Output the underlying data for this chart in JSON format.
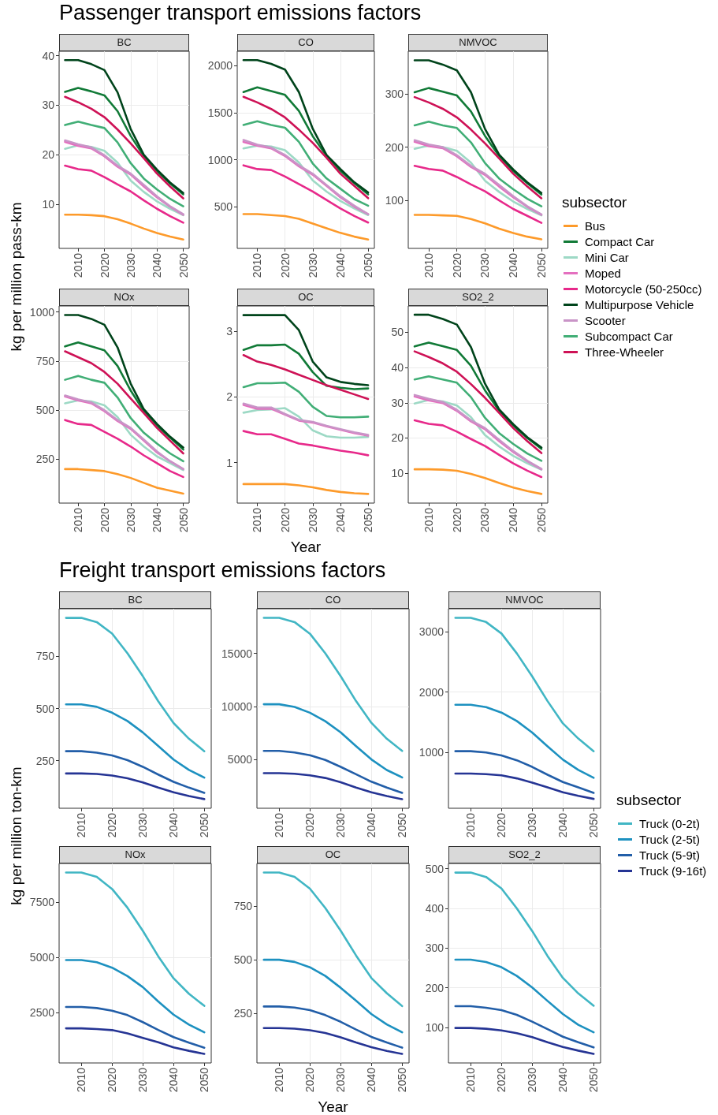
{
  "chart_data": [
    {
      "type": "line",
      "title": "BC",
      "annotations": [
        "Passenger transport emissions factors"
      ],
      "ylabel": "kg per million pass-km",
      "x": [
        2005,
        2010,
        2015,
        2020,
        2025,
        2030,
        2035,
        2040,
        2045,
        2050
      ],
      "xlim": [
        2002.75,
        2052.25
      ],
      "xticks": [
        2010,
        2020,
        2030,
        2040,
        2050
      ],
      "ylim": [
        1.1,
        40.9
      ],
      "yticks": [
        10,
        20,
        30,
        40
      ],
      "grid": true,
      "series": [
        {
          "color": "#fd9a2a",
          "values": [
            7.9,
            7.9,
            7.8,
            7.6,
            7.0,
            6.1,
            5.1,
            4.2,
            3.5,
            2.9
          ]
        },
        {
          "color": "#117a37",
          "values": [
            32.7,
            33.5,
            32.8,
            32.0,
            28.8,
            23.8,
            19.7,
            16.7,
            14.2,
            12.0
          ]
        },
        {
          "color": "#9dd9c5",
          "values": [
            21.2,
            21.9,
            21.6,
            20.8,
            18.4,
            14.8,
            12.5,
            10.6,
            9.1,
            7.8
          ]
        },
        {
          "color": "#e46fbf",
          "values": [
            22.6,
            21.8,
            21.3,
            19.7,
            17.6,
            16.0,
            13.6,
            11.4,
            9.5,
            7.9
          ]
        },
        {
          "color": "#e7298a",
          "values": [
            17.8,
            17.1,
            16.8,
            15.5,
            14.0,
            12.6,
            10.8,
            9.1,
            7.6,
            6.3
          ]
        },
        {
          "color": "#00441b",
          "values": [
            39.1,
            39.1,
            38.3,
            37.1,
            32.6,
            25.2,
            20.0,
            17.0,
            14.4,
            12.3
          ]
        },
        {
          "color": "#c994c7",
          "values": [
            22.9,
            22.1,
            21.5,
            19.9,
            17.8,
            16.2,
            13.9,
            11.6,
            9.6,
            8.0
          ]
        },
        {
          "color": "#41ae76",
          "values": [
            26.0,
            26.7,
            26.0,
            25.4,
            22.5,
            18.3,
            15.2,
            13.0,
            11.1,
            9.6
          ]
        },
        {
          "color": "#ce1256",
          "values": [
            31.7,
            30.6,
            29.3,
            27.6,
            25.1,
            22.3,
            19.3,
            16.2,
            13.6,
            11.2
          ]
        }
      ]
    },
    {
      "type": "line",
      "title": "CO",
      "x": [
        2005,
        2010,
        2015,
        2020,
        2025,
        2030,
        2035,
        2040,
        2045,
        2050
      ],
      "xlim": [
        2002.75,
        2052.25
      ],
      "xticks": [
        2010,
        2020,
        2030,
        2040,
        2050
      ],
      "ylim": [
        55,
        2155
      ],
      "yticks": [
        500,
        1000,
        1500,
        2000
      ],
      "grid": true,
      "series": [
        {
          "color": "#fd9a2a",
          "values": [
            420,
            420,
            410,
            400,
            370,
            320,
            270,
            220,
            180,
            150
          ]
        },
        {
          "color": "#117a37",
          "values": [
            1720,
            1770,
            1730,
            1690,
            1520,
            1250,
            1040,
            880,
            750,
            630
          ]
        },
        {
          "color": "#9dd9c5",
          "values": [
            1120,
            1150,
            1140,
            1100,
            970,
            780,
            660,
            560,
            480,
            410
          ]
        },
        {
          "color": "#e46fbf",
          "values": [
            1190,
            1150,
            1120,
            1040,
            930,
            840,
            720,
            600,
            500,
            420
          ]
        },
        {
          "color": "#e7298a",
          "values": [
            940,
            900,
            890,
            820,
            740,
            660,
            570,
            480,
            400,
            330
          ]
        },
        {
          "color": "#00441b",
          "values": [
            2060,
            2060,
            2020,
            1960,
            1720,
            1330,
            1050,
            900,
            760,
            650
          ]
        },
        {
          "color": "#c994c7",
          "values": [
            1210,
            1160,
            1130,
            1050,
            940,
            850,
            730,
            610,
            510,
            420
          ]
        },
        {
          "color": "#41ae76",
          "values": [
            1370,
            1410,
            1370,
            1340,
            1190,
            960,
            800,
            690,
            580,
            510
          ]
        },
        {
          "color": "#ce1256",
          "values": [
            1670,
            1610,
            1540,
            1450,
            1320,
            1180,
            1020,
            850,
            720,
            590
          ]
        }
      ]
    },
    {
      "type": "line",
      "title": "NMVOC",
      "legend": "right",
      "legend_title": "subsector",
      "x": [
        2005,
        2010,
        2015,
        2020,
        2025,
        2030,
        2035,
        2040,
        2045,
        2050
      ],
      "xlim": [
        2002.75,
        2052.25
      ],
      "xticks": [
        2010,
        2020,
        2030,
        2040,
        2050
      ],
      "ylim": [
        10,
        380
      ],
      "yticks": [
        100,
        200,
        300
      ],
      "grid": true,
      "series": [
        {
          "name": "Bus",
          "color": "#fd9a2a",
          "values": [
            73,
            73,
            72,
            71,
            65,
            57,
            47,
            39,
            32,
            27
          ]
        },
        {
          "name": "Compact Car",
          "color": "#117a37",
          "values": [
            303,
            311,
            304,
            297,
            267,
            221,
            183,
            155,
            132,
            111
          ]
        },
        {
          "name": "Mini Car",
          "color": "#9dd9c5",
          "values": [
            197,
            203,
            200,
            193,
            171,
            137,
            116,
            98,
            84,
            72
          ]
        },
        {
          "name": "Moped",
          "color": "#e46fbf",
          "values": [
            210,
            202,
            198,
            183,
            163,
            148,
            126,
            106,
            88,
            73
          ]
        },
        {
          "name": "Motorcycle (50-250cc)",
          "color": "#e7298a",
          "values": [
            165,
            159,
            156,
            144,
            130,
            117,
            100,
            84,
            71,
            58
          ]
        },
        {
          "name": "Multipurpose Vehicle",
          "color": "#00441b",
          "values": [
            363,
            363,
            355,
            344,
            303,
            234,
            186,
            158,
            134,
            114
          ]
        },
        {
          "name": "Scooter",
          "color": "#c994c7",
          "values": [
            213,
            205,
            200,
            185,
            165,
            150,
            129,
            108,
            89,
            74
          ]
        },
        {
          "name": "Subcompact Car",
          "color": "#41ae76",
          "values": [
            241,
            248,
            241,
            236,
            209,
            170,
            141,
            121,
            103,
            89
          ]
        },
        {
          "name": "Three-Wheeler",
          "color": "#ce1256",
          "values": [
            294,
            284,
            272,
            256,
            233,
            207,
            179,
            150,
            126,
            104
          ]
        }
      ]
    },
    {
      "type": "line",
      "title": "NOx",
      "x": [
        2005,
        2010,
        2015,
        2020,
        2025,
        2030,
        2035,
        2040,
        2045,
        2050
      ],
      "xlim": [
        2002.75,
        2052.25
      ],
      "xticks": [
        2010,
        2020,
        2030,
        2040,
        2050
      ],
      "ylim": [
        27,
        1031
      ],
      "yticks": [
        250,
        500,
        750,
        1000
      ],
      "grid": true,
      "series": [
        {
          "color": "#fd9a2a",
          "values": [
            200,
            200,
            195,
            190,
            175,
            155,
            130,
            105,
            90,
            75
          ]
        },
        {
          "color": "#117a37",
          "values": [
            825,
            845,
            825,
            805,
            725,
            600,
            495,
            420,
            360,
            300
          ]
        },
        {
          "color": "#9dd9c5",
          "values": [
            535,
            550,
            545,
            525,
            465,
            375,
            315,
            265,
            230,
            195
          ]
        },
        {
          "color": "#e46fbf",
          "values": [
            570,
            550,
            535,
            495,
            445,
            405,
            345,
            285,
            240,
            200
          ]
        },
        {
          "color": "#e7298a",
          "values": [
            450,
            430,
            425,
            390,
            355,
            315,
            270,
            230,
            190,
            160
          ]
        },
        {
          "color": "#00441b",
          "values": [
            985,
            985,
            965,
            935,
            820,
            635,
            505,
            430,
            365,
            310
          ]
        },
        {
          "color": "#c994c7",
          "values": [
            575,
            555,
            540,
            500,
            450,
            410,
            350,
            290,
            240,
            200
          ]
        },
        {
          "color": "#41ae76",
          "values": [
            655,
            675,
            655,
            640,
            565,
            460,
            385,
            330,
            280,
            240
          ]
        },
        {
          "color": "#ce1256",
          "values": [
            800,
            770,
            740,
            695,
            635,
            560,
            485,
            410,
            345,
            280
          ]
        }
      ]
    },
    {
      "type": "line",
      "title": "OC",
      "xlabel": "Year",
      "x": [
        2005,
        2010,
        2015,
        2020,
        2025,
        2030,
        2035,
        2040,
        2045,
        2050
      ],
      "xlim": [
        2002.75,
        2052.25
      ],
      "xticks": [
        2010,
        2020,
        2030,
        2040,
        2050
      ],
      "ylim": [
        0.38,
        3.39
      ],
      "yticks": [
        1,
        2,
        3
      ],
      "grid": true,
      "series": [
        {
          "color": "#fd9a2a",
          "values": [
            0.67,
            0.67,
            0.67,
            0.67,
            0.65,
            0.62,
            0.58,
            0.55,
            0.53,
            0.52
          ]
        },
        {
          "color": "#117a37",
          "values": [
            2.72,
            2.79,
            2.79,
            2.8,
            2.66,
            2.38,
            2.17,
            2.14,
            2.12,
            2.13
          ]
        },
        {
          "color": "#9dd9c5",
          "values": [
            1.76,
            1.8,
            1.81,
            1.83,
            1.7,
            1.49,
            1.4,
            1.38,
            1.38,
            1.39
          ]
        },
        {
          "color": "#e46fbf",
          "values": [
            1.88,
            1.82,
            1.82,
            1.73,
            1.64,
            1.61,
            1.55,
            1.5,
            1.45,
            1.41
          ]
        },
        {
          "color": "#e7298a",
          "values": [
            1.48,
            1.43,
            1.43,
            1.36,
            1.29,
            1.26,
            1.22,
            1.18,
            1.15,
            1.11
          ]
        },
        {
          "color": "#00441b",
          "values": [
            3.25,
            3.25,
            3.25,
            3.25,
            3.02,
            2.54,
            2.3,
            2.23,
            2.2,
            2.18
          ]
        },
        {
          "color": "#c994c7",
          "values": [
            1.9,
            1.84,
            1.84,
            1.74,
            1.65,
            1.62,
            1.56,
            1.51,
            1.46,
            1.42
          ]
        },
        {
          "color": "#41ae76",
          "values": [
            2.15,
            2.21,
            2.21,
            2.22,
            2.08,
            1.85,
            1.71,
            1.69,
            1.69,
            1.7
          ]
        },
        {
          "color": "#ce1256",
          "values": [
            2.64,
            2.54,
            2.49,
            2.42,
            2.34,
            2.26,
            2.18,
            2.11,
            2.04,
            1.97
          ]
        }
      ]
    },
    {
      "type": "line",
      "title": "SO2_2",
      "x": [
        2005,
        2010,
        2015,
        2020,
        2025,
        2030,
        2035,
        2040,
        2045,
        2050
      ],
      "xlim": [
        2002.75,
        2052.25
      ],
      "xticks": [
        2010,
        2020,
        2030,
        2040,
        2050
      ],
      "ylim": [
        1.5,
        57.5
      ],
      "yticks": [
        10,
        20,
        30,
        40,
        50
      ],
      "grid": true,
      "series": [
        {
          "color": "#fd9a2a",
          "values": [
            11.1,
            11.1,
            11.0,
            10.7,
            9.8,
            8.6,
            7.2,
            5.9,
            4.9,
            4.1
          ]
        },
        {
          "color": "#117a37",
          "values": [
            46.0,
            47.1,
            46.1,
            45.0,
            40.5,
            33.5,
            27.7,
            23.5,
            20.0,
            16.9
          ]
        },
        {
          "color": "#9dd9c5",
          "values": [
            29.8,
            30.8,
            30.4,
            29.2,
            25.9,
            20.8,
            17.6,
            14.9,
            12.8,
            11.0
          ]
        },
        {
          "color": "#e46fbf",
          "values": [
            31.8,
            30.7,
            29.9,
            27.7,
            24.7,
            22.5,
            19.1,
            16.0,
            13.4,
            11.1
          ]
        },
        {
          "color": "#e7298a",
          "values": [
            25.0,
            24.0,
            23.6,
            21.8,
            19.7,
            17.7,
            15.2,
            12.8,
            10.7,
            8.9
          ]
        },
        {
          "color": "#00441b",
          "values": [
            55.0,
            55.0,
            53.8,
            52.2,
            45.8,
            35.4,
            28.1,
            23.9,
            20.2,
            17.3
          ]
        },
        {
          "color": "#c994c7",
          "values": [
            32.2,
            31.1,
            30.2,
            28.0,
            25.0,
            22.8,
            19.5,
            16.3,
            13.5,
            11.2
          ]
        },
        {
          "color": "#41ae76",
          "values": [
            36.6,
            37.5,
            36.6,
            35.7,
            31.6,
            25.7,
            21.4,
            18.3,
            15.6,
            13.5
          ]
        },
        {
          "color": "#ce1256",
          "values": [
            44.6,
            43.0,
            41.2,
            38.8,
            35.3,
            31.4,
            27.1,
            22.8,
            19.1,
            15.7
          ]
        }
      ]
    },
    {
      "type": "line",
      "title": "BC",
      "annotations": [
        "Freight transport emissions factors"
      ],
      "ylabel": "kg per million ton-km",
      "x": [
        2005,
        2010,
        2015,
        2020,
        2025,
        2030,
        2035,
        2040,
        2045,
        2050
      ],
      "xlim": [
        2002.75,
        2052.25
      ],
      "xticks": [
        2010,
        2020,
        2030,
        2040,
        2050
      ],
      "ylim": [
        21,
        979
      ],
      "yticks": [
        250,
        500,
        750
      ],
      "grid": true,
      "series": [
        {
          "color": "#41b6c4",
          "values": [
            935,
            935,
            915,
            860,
            765,
            655,
            535,
            430,
            355,
            295
          ]
        },
        {
          "color": "#1d91c0",
          "values": [
            520,
            520,
            508,
            480,
            440,
            385,
            320,
            255,
            205,
            168
          ]
        },
        {
          "color": "#225ea8",
          "values": [
            295,
            295,
            288,
            275,
            252,
            220,
            183,
            148,
            120,
            95
          ]
        },
        {
          "color": "#253494",
          "values": [
            188,
            188,
            186,
            178,
            165,
            145,
            120,
            98,
            80,
            65
          ]
        }
      ]
    },
    {
      "type": "line",
      "title": "CO",
      "x": [
        2005,
        2010,
        2015,
        2020,
        2025,
        2030,
        2035,
        2040,
        2045,
        2050
      ],
      "xlim": [
        2002.75,
        2052.25
      ],
      "xticks": [
        2010,
        2020,
        2030,
        2040,
        2050
      ],
      "ylim": [
        395,
        19205
      ],
      "yticks": [
        5000,
        10000,
        15000
      ],
      "grid": true,
      "series": [
        {
          "color": "#41b6c4",
          "values": [
            18350,
            18350,
            17950,
            16850,
            15000,
            12850,
            10500,
            8450,
            6950,
            5800
          ]
        },
        {
          "color": "#1d91c0",
          "values": [
            10200,
            10200,
            9950,
            9400,
            8600,
            7550,
            6250,
            5000,
            4000,
            3300
          ]
        },
        {
          "color": "#225ea8",
          "values": [
            5800,
            5800,
            5650,
            5400,
            4950,
            4300,
            3600,
            2900,
            2350,
            1850
          ]
        },
        {
          "color": "#253494",
          "values": [
            3700,
            3700,
            3650,
            3500,
            3250,
            2850,
            2350,
            1900,
            1550,
            1250
          ]
        }
      ]
    },
    {
      "type": "line",
      "title": "NMVOC",
      "legend": "right",
      "legend_title": "subsector",
      "x": [
        2005,
        2010,
        2015,
        2020,
        2025,
        2030,
        2035,
        2040,
        2045,
        2050
      ],
      "xlim": [
        2002.75,
        2052.25
      ],
      "xticks": [
        2010,
        2020,
        2030,
        2040,
        2050
      ],
      "ylim": [
        75,
        3380
      ],
      "yticks": [
        1000,
        2000,
        3000
      ],
      "grid": true,
      "series": [
        {
          "name": "Truck (0-2t)",
          "color": "#41b6c4",
          "values": [
            3230,
            3230,
            3160,
            2970,
            2640,
            2260,
            1850,
            1480,
            1230,
            1020
          ]
        },
        {
          "name": "Truck (2-5t)",
          "color": "#1d91c0",
          "values": [
            1790,
            1790,
            1750,
            1660,
            1520,
            1330,
            1100,
            880,
            710,
            580
          ]
        },
        {
          "name": "Truck (5-9t)",
          "color": "#225ea8",
          "values": [
            1020,
            1020,
            1000,
            950,
            870,
            760,
            630,
            510,
            420,
            330
          ]
        },
        {
          "name": "Truck (9-16t)",
          "color": "#253494",
          "values": [
            650,
            650,
            640,
            620,
            570,
            500,
            420,
            340,
            280,
            230
          ]
        }
      ]
    },
    {
      "type": "line",
      "title": "NOx",
      "x": [
        2005,
        2010,
        2015,
        2020,
        2025,
        2030,
        2035,
        2040,
        2045,
        2050
      ],
      "xlim": [
        2002.75,
        2052.25
      ],
      "xticks": [
        2010,
        2020,
        2030,
        2040,
        2050
      ],
      "ylim": [
        210,
        9260
      ],
      "yticks": [
        2500,
        5000,
        7500
      ],
      "grid": true,
      "series": [
        {
          "color": "#41b6c4",
          "values": [
            8850,
            8850,
            8650,
            8100,
            7250,
            6200,
            5050,
            4050,
            3350,
            2800
          ]
        },
        {
          "color": "#1d91c0",
          "values": [
            4880,
            4880,
            4780,
            4530,
            4150,
            3650,
            3000,
            2400,
            1950,
            1600
          ]
        },
        {
          "color": "#225ea8",
          "values": [
            2750,
            2750,
            2700,
            2580,
            2380,
            2060,
            1710,
            1380,
            1130,
            900
          ]
        },
        {
          "color": "#253494",
          "values": [
            1780,
            1780,
            1750,
            1700,
            1550,
            1350,
            1150,
            920,
            760,
            620
          ]
        }
      ]
    },
    {
      "type": "line",
      "title": "OC",
      "xlabel": "Year",
      "x": [
        2005,
        2010,
        2015,
        2020,
        2025,
        2030,
        2035,
        2040,
        2045,
        2050
      ],
      "xlim": [
        2002.75,
        2052.25
      ],
      "xticks": [
        2010,
        2020,
        2030,
        2040,
        2050
      ],
      "ylim": [
        21,
        947
      ],
      "yticks": [
        250,
        500,
        750
      ],
      "grid": true,
      "series": [
        {
          "color": "#41b6c4",
          "values": [
            905,
            905,
            885,
            830,
            740,
            635,
            520,
            415,
            345,
            285
          ]
        },
        {
          "color": "#1d91c0",
          "values": [
            500,
            500,
            490,
            465,
            425,
            370,
            310,
            248,
            200,
            163
          ]
        },
        {
          "color": "#225ea8",
          "values": [
            283,
            283,
            278,
            266,
            243,
            212,
            176,
            142,
            116,
            92
          ]
        },
        {
          "color": "#253494",
          "values": [
            183,
            183,
            180,
            173,
            160,
            140,
            116,
            94,
            77,
            63
          ]
        }
      ]
    },
    {
      "type": "line",
      "title": "SO2_2",
      "x": [
        2005,
        2010,
        2015,
        2020,
        2025,
        2030,
        2035,
        2040,
        2045,
        2050
      ],
      "xlim": [
        2002.75,
        2052.25
      ],
      "xticks": [
        2010,
        2020,
        2030,
        2040,
        2050
      ],
      "ylim": [
        11,
        513
      ],
      "yticks": [
        100,
        200,
        300,
        400,
        500
      ],
      "grid": true,
      "series": [
        {
          "color": "#41b6c4",
          "values": [
            490,
            490,
            479,
            450,
            400,
            343,
            280,
            225,
            186,
            155
          ]
        },
        {
          "color": "#1d91c0",
          "values": [
            271,
            271,
            265,
            252,
            230,
            201,
            167,
            134,
            107,
            88
          ]
        },
        {
          "color": "#225ea8",
          "values": [
            154,
            154,
            150,
            144,
            132,
            115,
            96,
            77,
            63,
            50
          ]
        },
        {
          "color": "#253494",
          "values": [
            99,
            99,
            97,
            93,
            86,
            76,
            63,
            51,
            42,
            34
          ]
        }
      ]
    }
  ]
}
